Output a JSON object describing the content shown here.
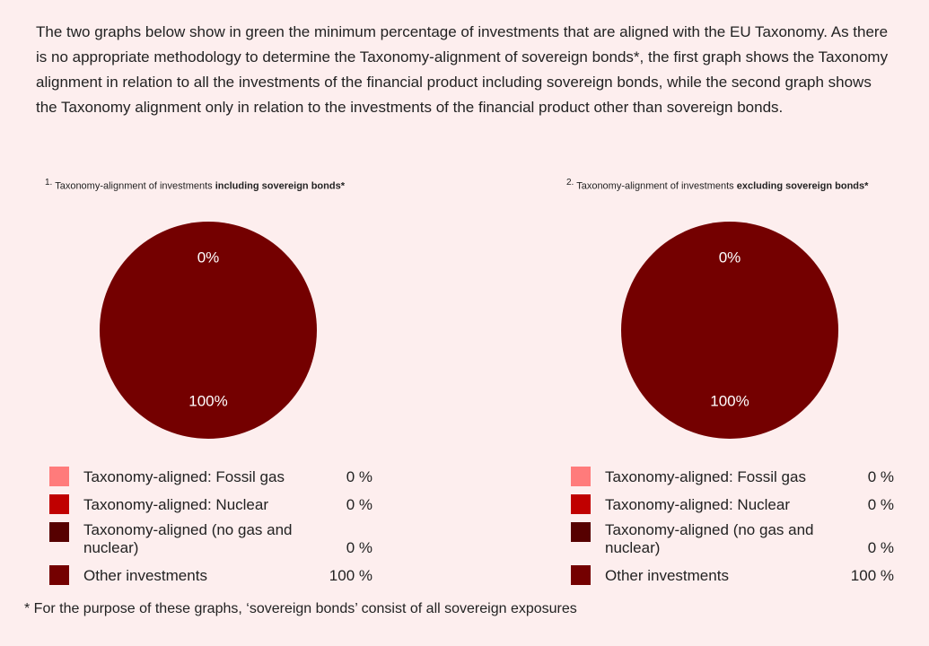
{
  "intro": "The two graphs below show in green the minimum percentage of investments that are aligned with the EU Taxonomy. As there is no appropriate methodology to determine the Taxonomy-alignment of sovereign bonds*, the first graph shows the Taxonomy alignment in relation to all the investments of the financial product including sovereign bonds, while the second graph shows the Taxonomy alignment only in relation to the investments of the financial product other than sovereign bonds.",
  "chart_data": [
    {
      "type": "pie",
      "number": "1.",
      "title": "Taxonomy-alignment of investments",
      "title_bold": "including sovereign bonds*",
      "categories": [
        "Taxonomy-aligned: Fossil gas",
        "Taxonomy-aligned: Nuclear",
        "Taxonomy-aligned (no gas and nuclear)",
        "Other investments"
      ],
      "values": [
        0,
        0,
        0,
        100
      ],
      "value_labels": [
        "0 %",
        "0 %",
        "0 %",
        "100 %"
      ],
      "colors": [
        "#ff7b7b",
        "#c00000",
        "#560000",
        "#740000"
      ],
      "pie_labels": [
        {
          "value": 0,
          "label": "0%"
        },
        {
          "value": 100,
          "label": "100%"
        }
      ]
    },
    {
      "type": "pie",
      "number": "2.",
      "title": "Taxonomy-alignment of investments",
      "title_bold": "excluding sovereign bonds*",
      "categories": [
        "Taxonomy-aligned: Fossil gas",
        "Taxonomy-aligned: Nuclear",
        "Taxonomy-aligned (no gas and nuclear)",
        "Other investments"
      ],
      "values": [
        0,
        0,
        0,
        100
      ],
      "value_labels": [
        "0 %",
        "0 %",
        "0 %",
        "100 %"
      ],
      "colors": [
        "#ff7b7b",
        "#c00000",
        "#560000",
        "#740000"
      ],
      "pie_labels": [
        {
          "value": 0,
          "label": "0%"
        },
        {
          "value": 100,
          "label": "100%"
        }
      ]
    }
  ],
  "footnote": "* For the purpose of these graphs, ‘sovereign bonds’ consist of all sovereign exposures"
}
